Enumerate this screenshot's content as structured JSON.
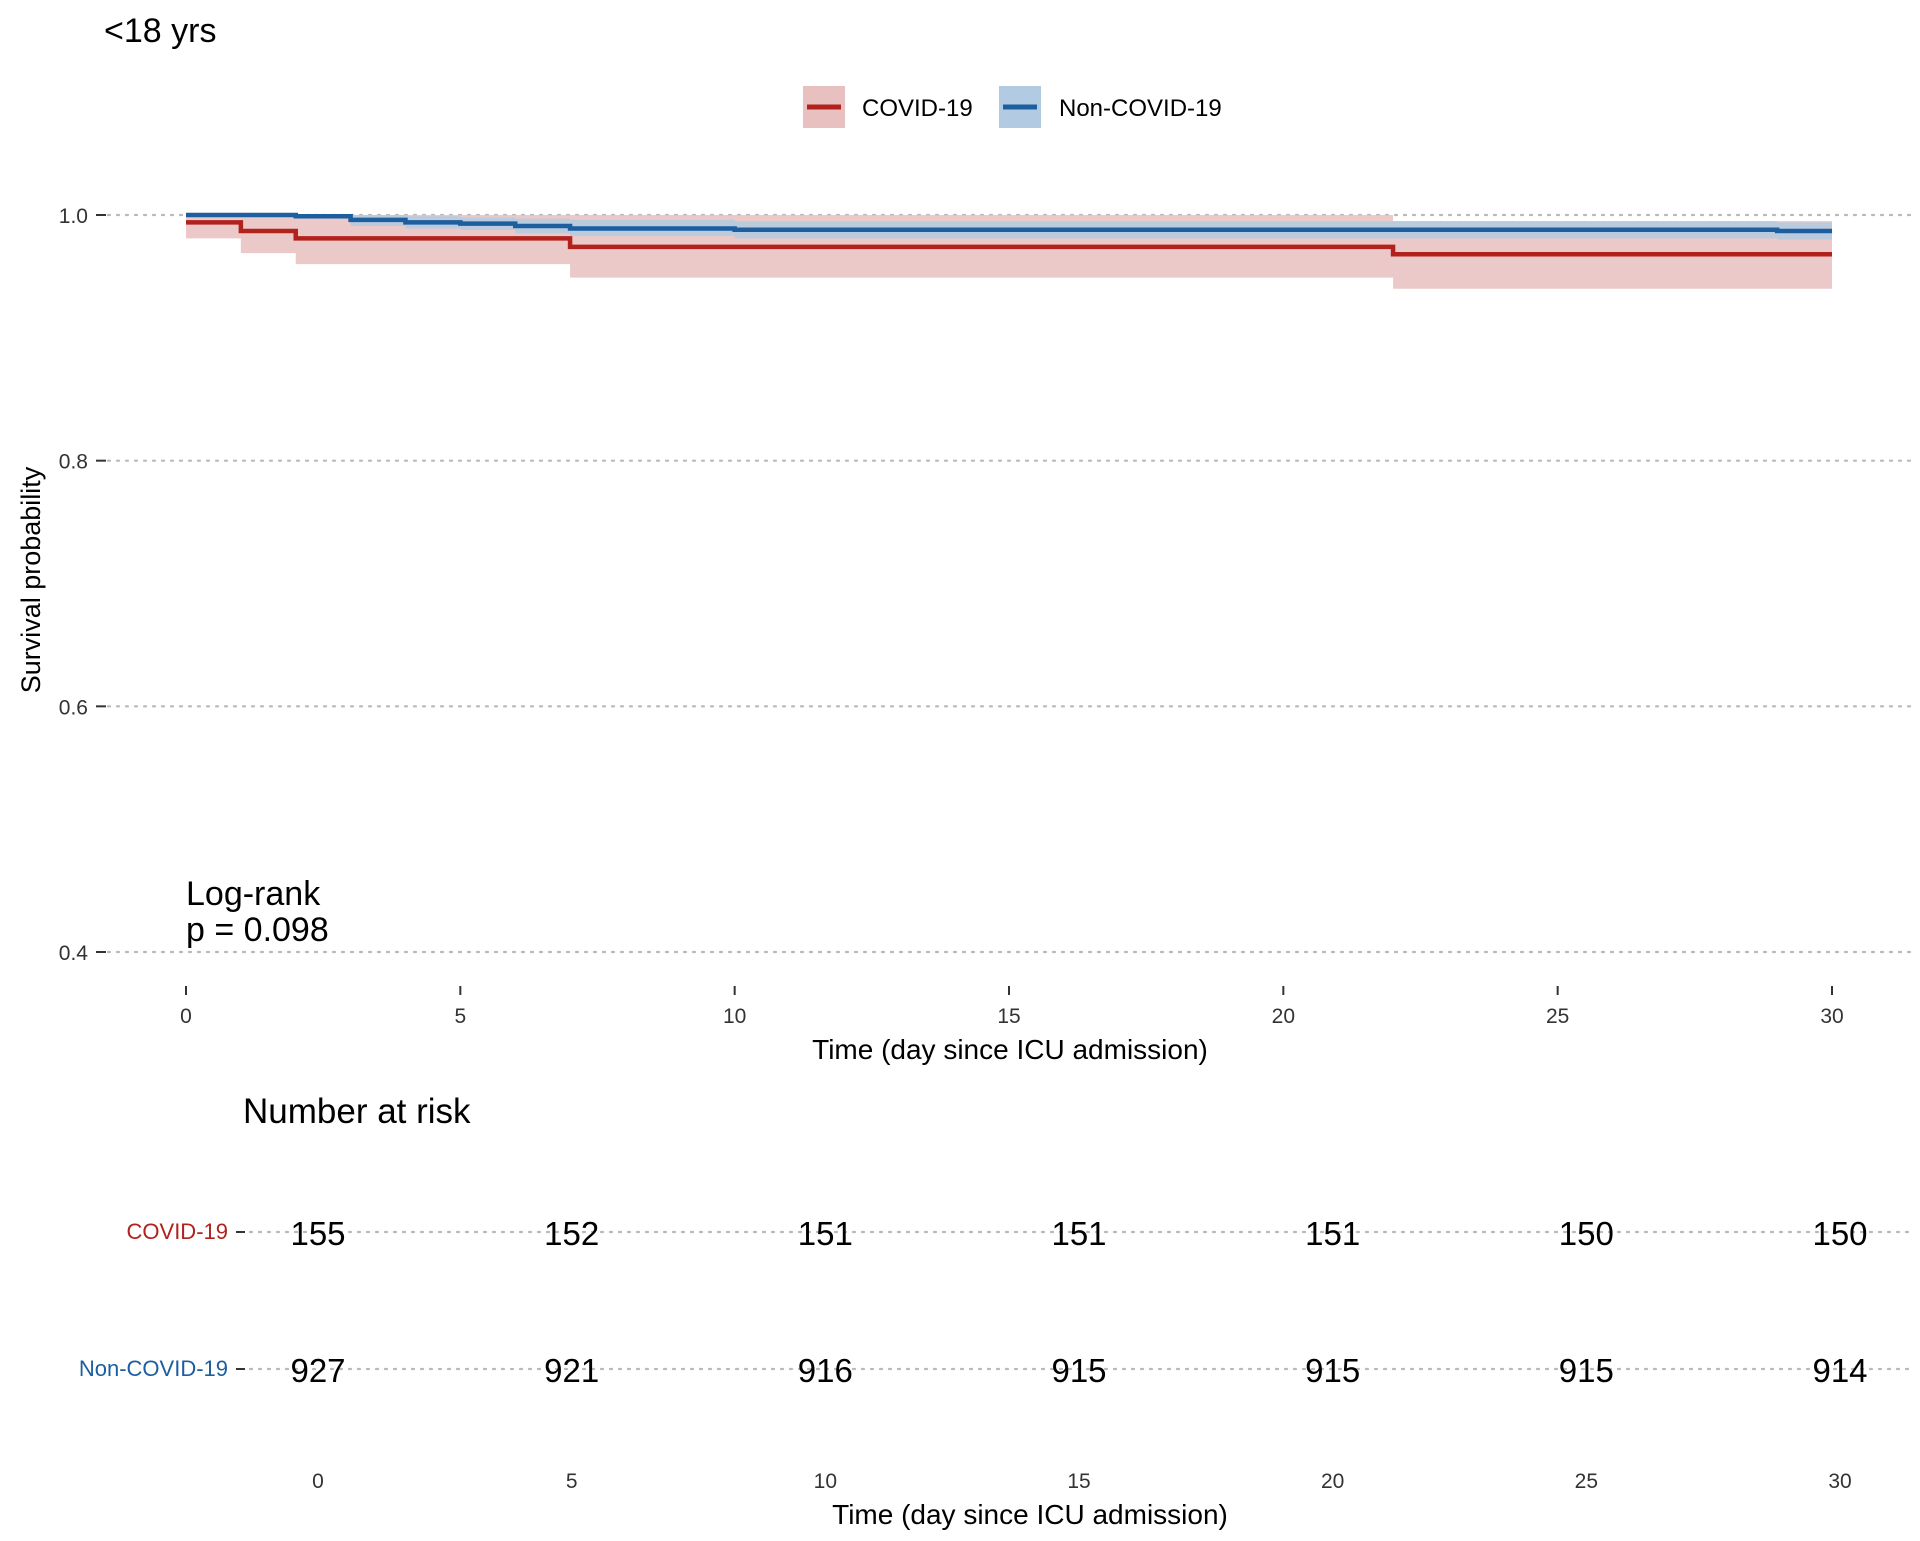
{
  "chart_data": {
    "type": "line",
    "subtype": "kaplan-meier-survival",
    "title": "<18 yrs",
    "xlabel": "Time (day since ICU admission)",
    "ylabel": "Survival probability",
    "xlim": [
      0,
      30
    ],
    "ylim": [
      0.4,
      1.0
    ],
    "x_ticks": [
      0,
      5,
      10,
      15,
      20,
      25,
      30
    ],
    "y_ticks": [
      0.4,
      0.6,
      0.8,
      1.0
    ],
    "y_tick_labels": [
      "0.4",
      "0.6",
      "0.8",
      "1.0"
    ],
    "grid": "horizontal dotted",
    "legend_position": "top",
    "annotation": {
      "line1": "Log-rank",
      "line2": "p = 0.098",
      "x": 0,
      "y": 0.41
    },
    "series": [
      {
        "name": "COVID-19",
        "color": "#B2221D",
        "fill": "#E8C0BF",
        "steps": [
          {
            "x": 0,
            "y": 0.994,
            "lo": 0.981,
            "hi": 1.0
          },
          {
            "x": 1,
            "y": 0.987,
            "lo": 0.969,
            "hi": 1.0
          },
          {
            "x": 2,
            "y": 0.981,
            "lo": 0.96,
            "hi": 1.0
          },
          {
            "x": 7,
            "y": 0.974,
            "lo": 0.949,
            "hi": 1.0
          },
          {
            "x": 22,
            "y": 0.968,
            "lo": 0.94,
            "hi": 0.995
          },
          {
            "x": 30,
            "y": 0.968,
            "lo": 0.94,
            "hi": 0.995
          }
        ]
      },
      {
        "name": "Non-COVID-19",
        "color": "#1C5E9E",
        "fill": "#B3CBE2",
        "steps": [
          {
            "x": 0,
            "y": 1.0,
            "lo": 0.999,
            "hi": 1.0
          },
          {
            "x": 2,
            "y": 0.999,
            "lo": 0.997,
            "hi": 1.0
          },
          {
            "x": 3,
            "y": 0.996,
            "lo": 0.991,
            "hi": 1.0
          },
          {
            "x": 4,
            "y": 0.994,
            "lo": 0.989,
            "hi": 0.999
          },
          {
            "x": 5,
            "y": 0.993,
            "lo": 0.988,
            "hi": 0.998
          },
          {
            "x": 6,
            "y": 0.991,
            "lo": 0.985,
            "hi": 0.997
          },
          {
            "x": 7,
            "y": 0.989,
            "lo": 0.983,
            "hi": 0.996
          },
          {
            "x": 10,
            "y": 0.988,
            "lo": 0.981,
            "hi": 0.995
          },
          {
            "x": 29,
            "y": 0.987,
            "lo": 0.98,
            "hi": 0.994
          },
          {
            "x": 30,
            "y": 0.987,
            "lo": 0.98,
            "hi": 0.994
          }
        ]
      }
    ],
    "risk_table": {
      "title": "Number at risk",
      "xlabel": "Time (day since ICU admission)",
      "times": [
        0,
        5,
        10,
        15,
        20,
        25,
        30
      ],
      "rows": [
        {
          "name": "COVID-19",
          "color": "#B2221D",
          "values": [
            155,
            152,
            151,
            151,
            151,
            150,
            150
          ]
        },
        {
          "name": "Non-COVID-19",
          "color": "#1C5E9E",
          "values": [
            927,
            921,
            916,
            915,
            915,
            915,
            914
          ]
        }
      ]
    }
  }
}
